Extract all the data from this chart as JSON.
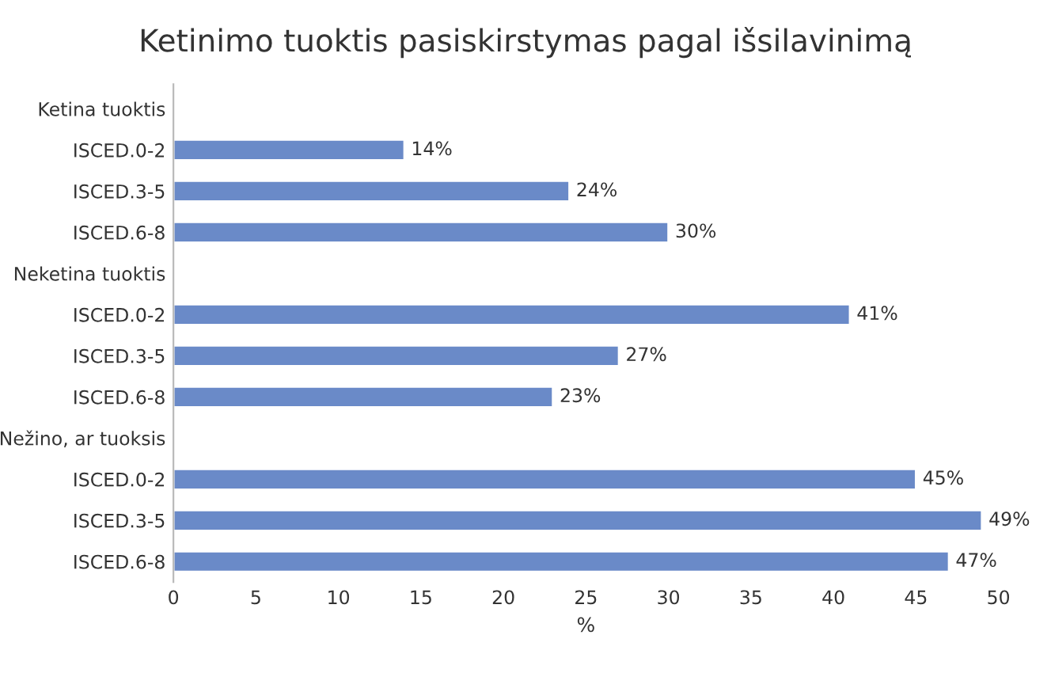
{
  "chart_data": {
    "type": "bar",
    "orientation": "horizontal",
    "title": "Ketinimo tuoktis pasiskirstymas pagal išsilavinimą",
    "xlabel": "%",
    "categories": [
      "Ketina tuoktis",
      "ISCED.0-2",
      "ISCED.3-5",
      "ISCED.6-8",
      "Neketina tuoktis",
      "ISCED.0-2",
      "ISCED.3-5",
      "ISCED.6-8",
      "Nežino, ar tuoksis",
      "ISCED.0-2",
      "ISCED.3-5",
      "ISCED.6-8"
    ],
    "values": [
      null,
      14,
      24,
      30,
      null,
      41,
      27,
      23,
      null,
      45,
      49,
      47
    ],
    "value_labels": [
      null,
      "14%",
      "24%",
      "30%",
      null,
      "41%",
      "27%",
      "23%",
      null,
      "45%",
      "49%",
      "47%"
    ],
    "color": "#6a8ac8",
    "xlim": [
      0,
      50
    ],
    "xticks": [
      0,
      5,
      10,
      15,
      20,
      25,
      30,
      35,
      40,
      45,
      50
    ],
    "grid": false,
    "legend": false
  }
}
